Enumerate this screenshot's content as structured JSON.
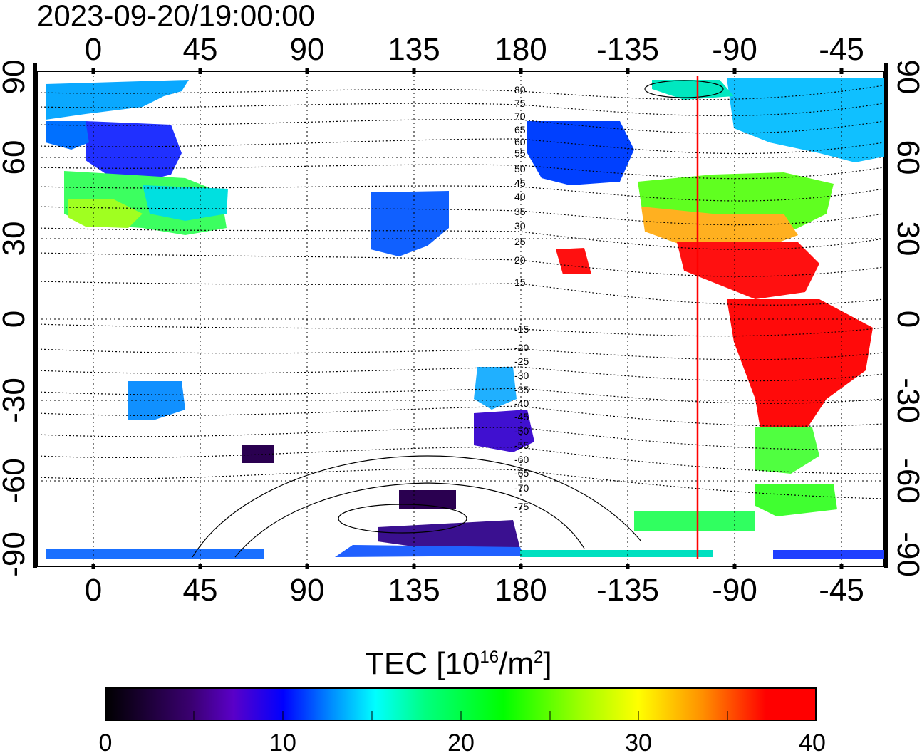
{
  "title": "2023-09-20/19:00:00",
  "map": {
    "lon_ticks_top": [
      "0",
      "45",
      "90",
      "135",
      "180",
      "-135",
      "-90",
      "-45"
    ],
    "lon_ticks_bottom": [
      "0",
      "45",
      "90",
      "135",
      "180",
      "-135",
      "-90",
      "-45"
    ],
    "lat_ticks_left": [
      "90",
      "60",
      "30",
      "0",
      "-30",
      "-60",
      "-90"
    ],
    "lat_ticks_right": [
      "90",
      "60",
      "30",
      "0",
      "-30",
      "-60",
      "-90"
    ],
    "dip_labels": [
      "80",
      "75",
      "70",
      "65",
      "60",
      "55",
      "50",
      "45",
      "40",
      "35",
      "30",
      "25",
      "20",
      "15",
      "-15",
      "-20",
      "-25",
      "-30",
      "-35",
      "-40",
      "-45",
      "-50",
      "-55",
      "-60",
      "-65",
      "-70",
      "-75"
    ],
    "subsolar_line_color": "#ff0000",
    "grid": true
  },
  "colorbar": {
    "label_main": "TEC  [10",
    "label_sup1": "16",
    "label_mid": "/m",
    "label_sup2": "2",
    "label_end": "]",
    "min": 0,
    "max": 40,
    "tick_labels": [
      "0",
      "10",
      "20",
      "30",
      "40"
    ],
    "colors": [
      "#000000",
      "#3a0070",
      "#5a00c8",
      "#0000ff",
      "#0090ff",
      "#00ffff",
      "#00ff80",
      "#00ff00",
      "#a0ff00",
      "#ffff00",
      "#ff9000",
      "#ff0000"
    ]
  }
}
